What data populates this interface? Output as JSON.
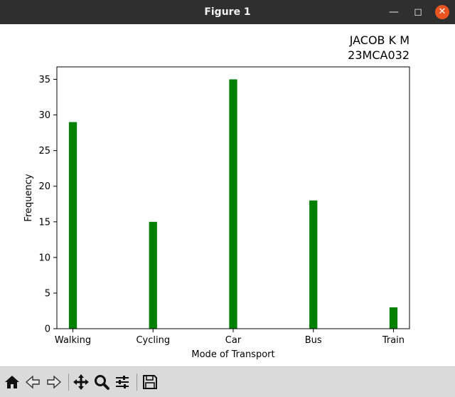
{
  "window": {
    "title": "Figure 1",
    "controls": {
      "minimize_icon": "minimize-icon",
      "maximize_icon": "maximize-icon",
      "close_icon": "close-icon"
    }
  },
  "toolbar": {
    "buttons": [
      {
        "name": "home",
        "icon": "home-icon"
      },
      {
        "name": "back",
        "icon": "arrow-left-icon"
      },
      {
        "name": "forward",
        "icon": "arrow-right-icon"
      },
      {
        "name": "pan",
        "icon": "move-icon"
      },
      {
        "name": "zoom",
        "icon": "magnifier-icon"
      },
      {
        "name": "configure",
        "icon": "sliders-icon"
      },
      {
        "name": "save",
        "icon": "floppy-disk-icon"
      }
    ]
  },
  "chart_data": {
    "type": "bar",
    "title": "JACOB K M \n23MCA032",
    "title_lines": [
      "JACOB K M",
      "23MCA032"
    ],
    "xlabel": "Mode of Transport",
    "ylabel": "Frequency",
    "categories": [
      "Walking",
      "Cycling",
      "Car",
      "Bus",
      "Train"
    ],
    "values": [
      29,
      15,
      35,
      18,
      3
    ],
    "ylim": [
      0,
      36.75
    ],
    "yticks": [
      0,
      5,
      10,
      15,
      20,
      25,
      30,
      35
    ],
    "bar_color": "#008000",
    "grid": false,
    "legend": "none"
  }
}
